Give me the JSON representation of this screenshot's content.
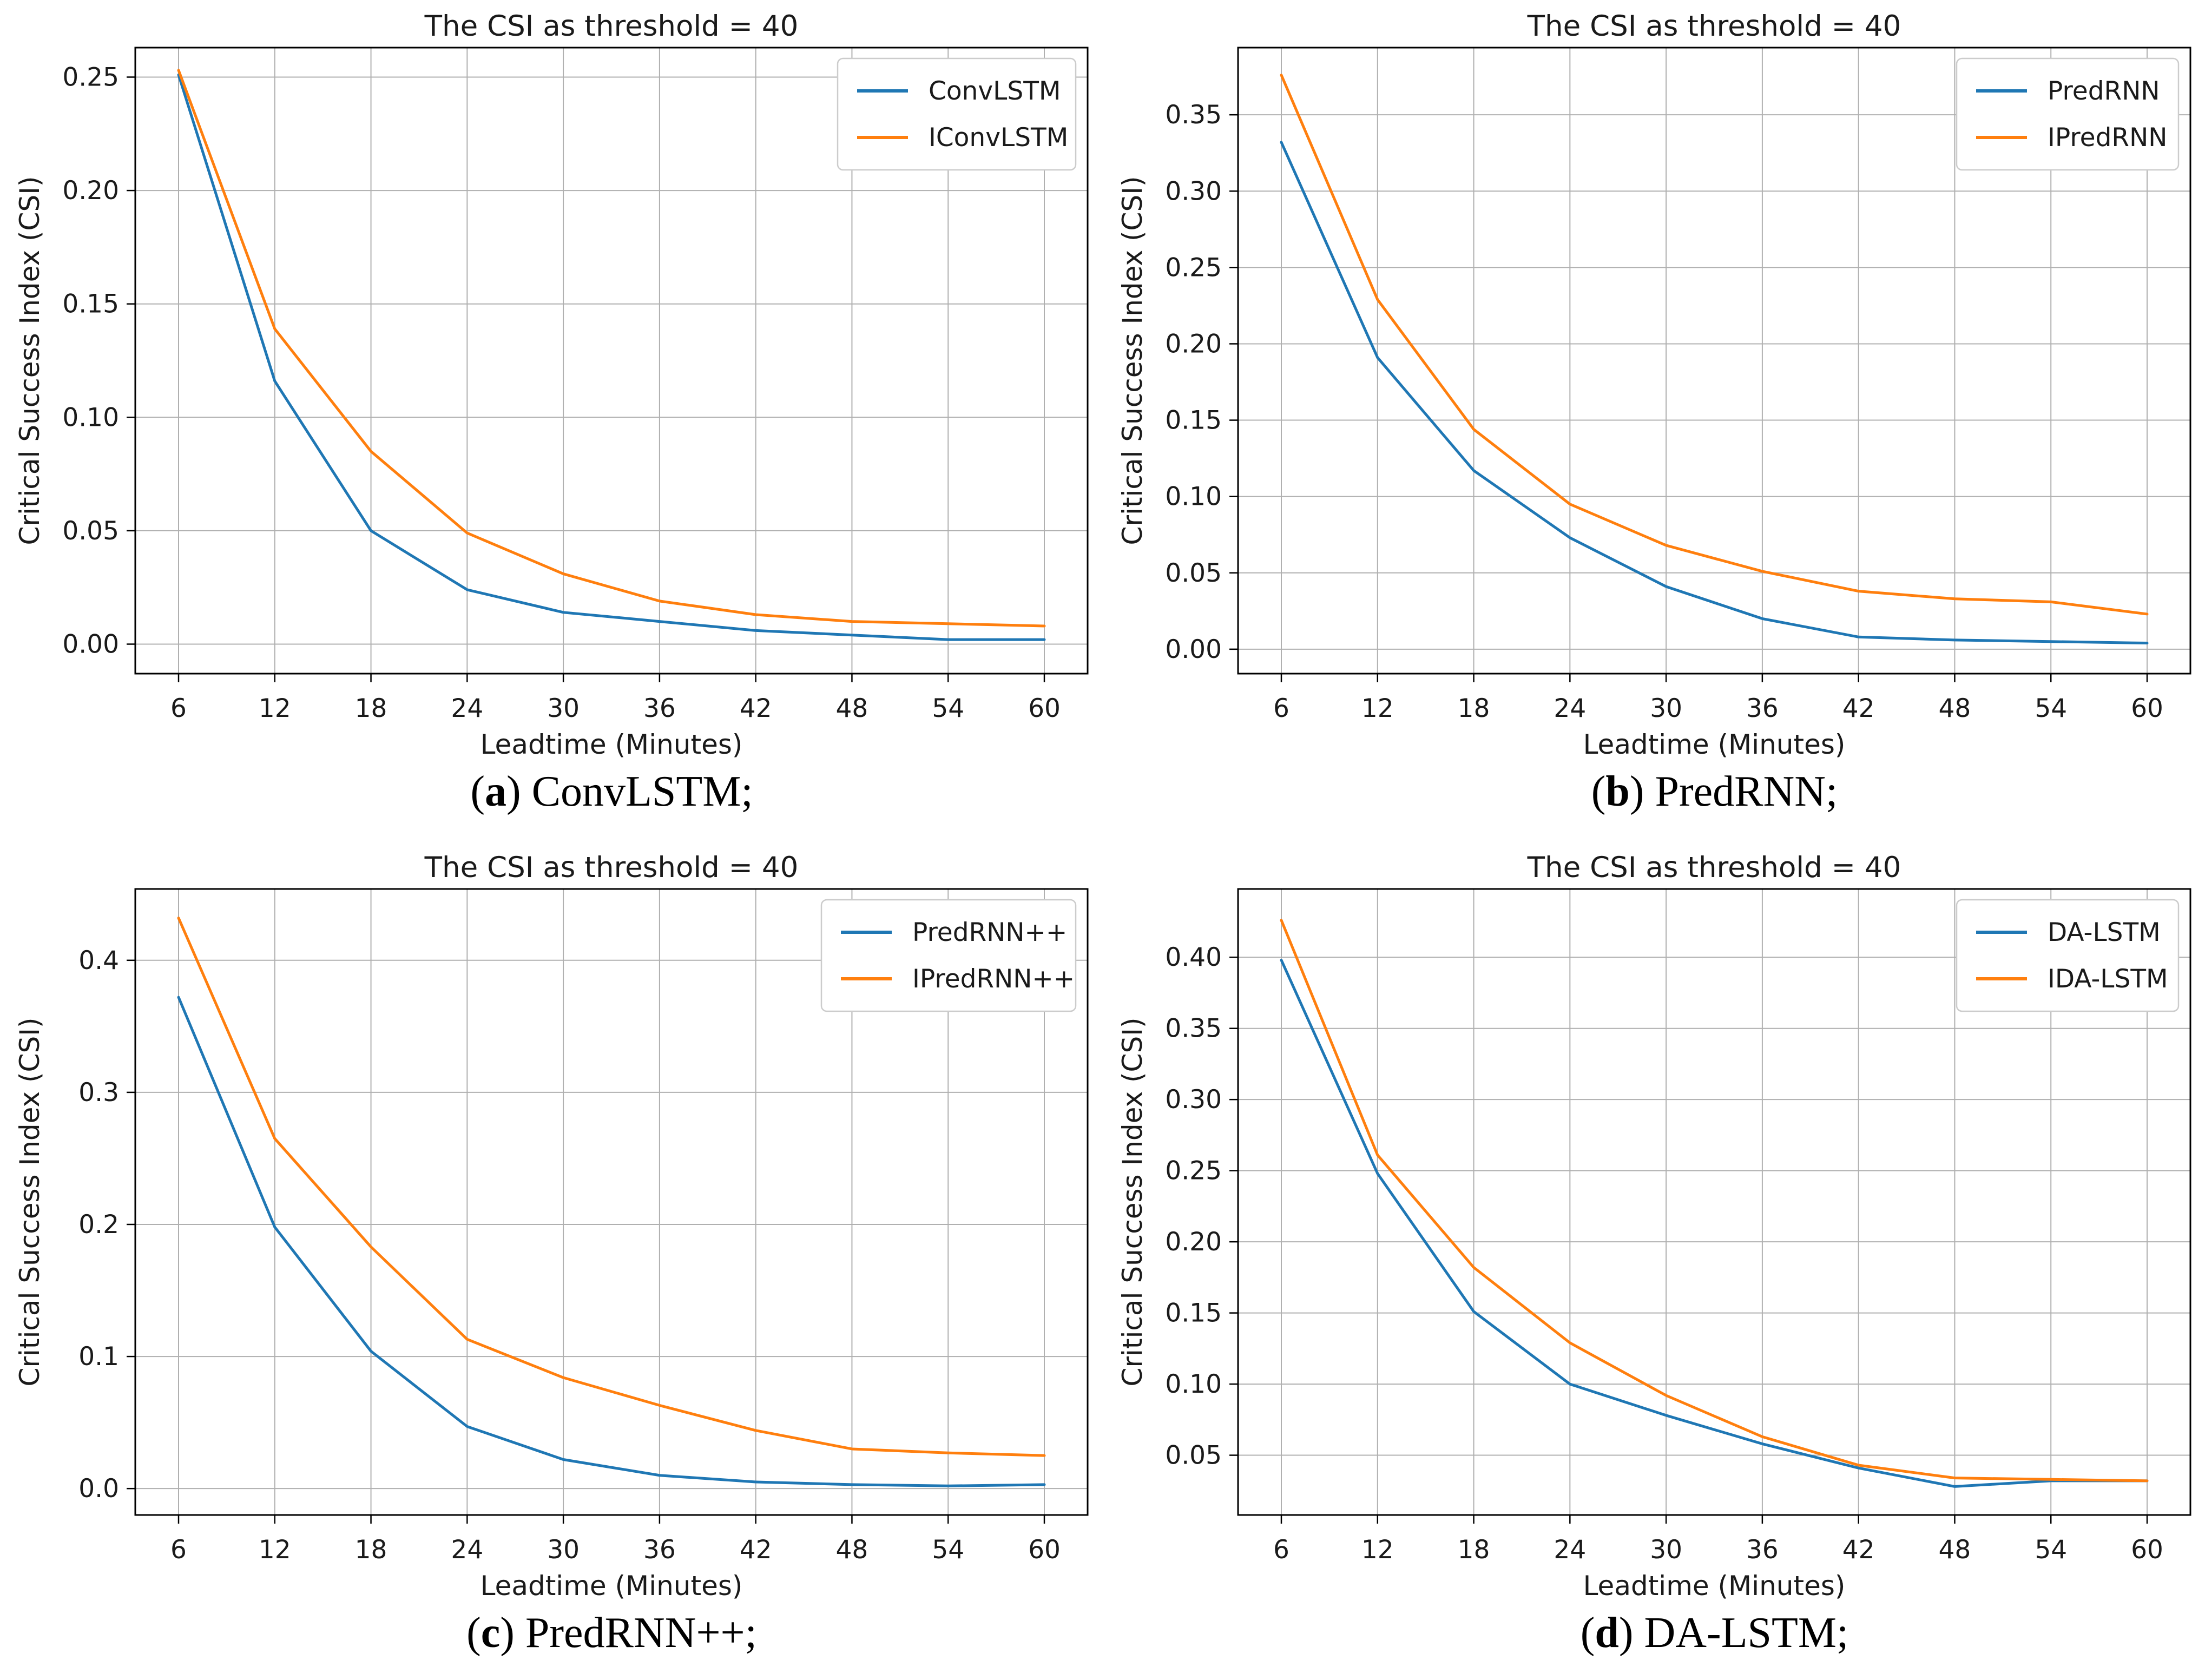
{
  "colors": {
    "series_blue": "#1f77b4",
    "series_orange": "#ff7f0e",
    "grid": "#b0b0b0",
    "spine": "#000000",
    "text": "#1a1a1a",
    "legend_border": "#cccccc",
    "background": "#ffffff"
  },
  "chart_data": [
    {
      "type": "line",
      "title": "The CSI as threshold = 40",
      "xlabel": "Leadtime (Minutes)",
      "ylabel": "Critical Success Index (CSI)",
      "x": [
        6,
        12,
        18,
        24,
        30,
        36,
        42,
        48,
        54,
        60
      ],
      "xtick_labels": [
        "6",
        "12",
        "18",
        "24",
        "30",
        "36",
        "42",
        "48",
        "54",
        "60"
      ],
      "xlim": [
        3.3,
        62.7
      ],
      "ylim": [
        -0.013,
        0.263
      ],
      "ytick_values": [
        0.0,
        0.05,
        0.1,
        0.15,
        0.2,
        0.25
      ],
      "ytick_labels": [
        "0.00",
        "0.05",
        "0.10",
        "0.15",
        "0.20",
        "0.25"
      ],
      "grid": true,
      "legend_position": "upper right",
      "series": [
        {
          "name": "ConvLSTM",
          "color": "#1f77b4",
          "values": [
            0.251,
            0.116,
            0.05,
            0.024,
            0.014,
            0.01,
            0.006,
            0.004,
            0.002,
            0.002
          ]
        },
        {
          "name": "IConvLSTM",
          "color": "#ff7f0e",
          "values": [
            0.253,
            0.139,
            0.085,
            0.049,
            0.031,
            0.019,
            0.013,
            0.01,
            0.009,
            0.008
          ]
        }
      ],
      "caption": {
        "open": "(",
        "letter": "a",
        "close": ")",
        "label": "ConvLSTM;"
      }
    },
    {
      "type": "line",
      "title": "The CSI as threshold = 40",
      "xlabel": "Leadtime (Minutes)",
      "ylabel": "Critical Success Index (CSI)",
      "x": [
        6,
        12,
        18,
        24,
        30,
        36,
        42,
        48,
        54,
        60
      ],
      "xtick_labels": [
        "6",
        "12",
        "18",
        "24",
        "30",
        "36",
        "42",
        "48",
        "54",
        "60"
      ],
      "xlim": [
        3.3,
        62.7
      ],
      "ylim": [
        -0.016,
        0.394
      ],
      "ytick_values": [
        0.0,
        0.05,
        0.1,
        0.15,
        0.2,
        0.25,
        0.3,
        0.35
      ],
      "ytick_labels": [
        "0.00",
        "0.05",
        "0.10",
        "0.15",
        "0.20",
        "0.25",
        "0.30",
        "0.35"
      ],
      "grid": true,
      "legend_position": "upper right",
      "series": [
        {
          "name": "PredRNN",
          "color": "#1f77b4",
          "values": [
            0.332,
            0.191,
            0.117,
            0.073,
            0.041,
            0.02,
            0.008,
            0.006,
            0.005,
            0.004
          ]
        },
        {
          "name": "IPredRNN",
          "color": "#ff7f0e",
          "values": [
            0.376,
            0.229,
            0.144,
            0.095,
            0.068,
            0.051,
            0.038,
            0.033,
            0.031,
            0.023
          ]
        }
      ],
      "caption": {
        "open": "(",
        "letter": "b",
        "close": ")",
        "label": "PredRNN;"
      }
    },
    {
      "type": "line",
      "title": "The CSI as threshold = 40",
      "xlabel": "Leadtime (Minutes)",
      "ylabel": "Critical Success Index (CSI)",
      "x": [
        6,
        12,
        18,
        24,
        30,
        36,
        42,
        48,
        54,
        60
      ],
      "xtick_labels": [
        "6",
        "12",
        "18",
        "24",
        "30",
        "36",
        "42",
        "48",
        "54",
        "60"
      ],
      "xlim": [
        3.3,
        62.7
      ],
      "ylim": [
        -0.02,
        0.454
      ],
      "ytick_values": [
        0.0,
        0.1,
        0.2,
        0.3,
        0.4
      ],
      "ytick_labels": [
        "0.0",
        "0.1",
        "0.2",
        "0.3",
        "0.4"
      ],
      "grid": true,
      "legend_position": "upper right",
      "series": [
        {
          "name": "PredRNN++",
          "color": "#1f77b4",
          "values": [
            0.372,
            0.198,
            0.104,
            0.047,
            0.022,
            0.01,
            0.005,
            0.003,
            0.002,
            0.003
          ]
        },
        {
          "name": "IPredRNN++",
          "color": "#ff7f0e",
          "values": [
            0.432,
            0.265,
            0.183,
            0.113,
            0.084,
            0.063,
            0.044,
            0.03,
            0.027,
            0.025
          ]
        }
      ],
      "caption": {
        "open": "(",
        "letter": "c",
        "close": ")",
        "label": "PredRNN++;"
      }
    },
    {
      "type": "line",
      "title": "The CSI as threshold = 40",
      "xlabel": "Leadtime (Minutes)",
      "ylabel": "Critical Success Index (CSI)",
      "x": [
        6,
        12,
        18,
        24,
        30,
        36,
        42,
        48,
        54,
        60
      ],
      "xtick_labels": [
        "6",
        "12",
        "18",
        "24",
        "30",
        "36",
        "42",
        "48",
        "54",
        "60"
      ],
      "xlim": [
        3.3,
        62.7
      ],
      "ylim": [
        0.008,
        0.448
      ],
      "ytick_values": [
        0.05,
        0.1,
        0.15,
        0.2,
        0.25,
        0.3,
        0.35,
        0.4
      ],
      "ytick_labels": [
        "0.05",
        "0.10",
        "0.15",
        "0.20",
        "0.25",
        "0.30",
        "0.35",
        "0.40"
      ],
      "grid": true,
      "legend_position": "upper right",
      "series": [
        {
          "name": "DA-LSTM",
          "color": "#1f77b4",
          "values": [
            0.398,
            0.248,
            0.151,
            0.1,
            0.078,
            0.058,
            0.041,
            0.028,
            0.032,
            0.032
          ]
        },
        {
          "name": "IDA-LSTM",
          "color": "#ff7f0e",
          "values": [
            0.426,
            0.261,
            0.182,
            0.129,
            0.092,
            0.063,
            0.043,
            0.034,
            0.033,
            0.032
          ]
        }
      ],
      "caption": {
        "open": "(",
        "letter": "d",
        "close": ")",
        "label": "DA-LSTM;"
      }
    }
  ]
}
